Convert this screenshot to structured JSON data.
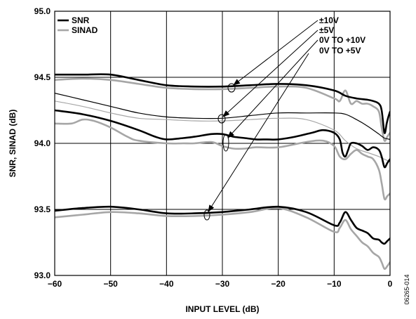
{
  "figure_id": "06265-014",
  "chart_data": {
    "type": "line",
    "title": "",
    "xlabel": "INPUT LEVEL (dB)",
    "ylabel": "SNR, SINAD (dB)",
    "xlim": [
      -60,
      0
    ],
    "ylim": [
      93.0,
      95.0
    ],
    "x_ticks": [
      -60,
      -50,
      -40,
      -30,
      -20,
      -10,
      0
    ],
    "x_tick_labels": [
      "−60",
      "−50",
      "−40",
      "−30",
      "−20",
      "−10",
      "0"
    ],
    "y_ticks": [
      93.0,
      93.5,
      94.0,
      94.5,
      95.0
    ],
    "y_tick_labels": [
      "93.0",
      "93.5",
      "94.0",
      "94.5",
      "95.0"
    ],
    "grid": true,
    "legend_position": "top-left",
    "legend": [
      {
        "label": "SNR",
        "color": "#000000"
      },
      {
        "label": "SINAD",
        "color": "#a6a6a6"
      }
    ],
    "annotations": [
      "±10V",
      "±5V",
      "0V TO +10V",
      "0V TO +5V"
    ],
    "series": [
      {
        "metric": "SNR",
        "range": "±10V",
        "color": "#000000",
        "width": 2.6,
        "x": [
          -60,
          -55,
          -50,
          -45,
          -40,
          -35,
          -30,
          -25,
          -20,
          -15,
          -10,
          -8,
          -6,
          -4,
          -3,
          -2,
          -1.5,
          -1,
          -0.6,
          -0.3,
          0
        ],
        "y": [
          94.52,
          94.52,
          94.52,
          94.48,
          94.44,
          94.43,
          94.43,
          94.44,
          94.45,
          94.44,
          94.4,
          94.36,
          94.34,
          94.33,
          94.32,
          94.3,
          94.25,
          94.08,
          94.15,
          94.2,
          94.24
        ]
      },
      {
        "metric": "SINAD",
        "range": "±10V",
        "color": "#a6a6a6",
        "width": 2.6,
        "x": [
          -60,
          -55,
          -50,
          -45,
          -40,
          -35,
          -30,
          -25,
          -20,
          -15,
          -10,
          -9,
          -8,
          -7,
          -6,
          -5,
          -4,
          -3,
          -2,
          -1.5,
          -1,
          -0.5,
          0
        ],
        "y": [
          94.48,
          94.49,
          94.48,
          94.45,
          94.42,
          94.41,
          94.41,
          94.42,
          94.43,
          94.42,
          94.34,
          94.32,
          94.4,
          94.3,
          94.32,
          94.3,
          94.3,
          94.28,
          94.24,
          94.12,
          94.02,
          94.05,
          94.08
        ]
      },
      {
        "metric": "SNR",
        "range": "±5V",
        "color": "#000000",
        "width": 1.2,
        "x": [
          -60,
          -55,
          -50,
          -45,
          -40,
          -35,
          -30,
          -25,
          -20,
          -15,
          -10,
          -8,
          -6,
          -4,
          -2,
          -1,
          0
        ],
        "y": [
          94.38,
          94.33,
          94.28,
          94.23,
          94.2,
          94.19,
          94.19,
          94.21,
          94.23,
          94.23,
          94.23,
          94.22,
          94.18,
          94.13,
          94.07,
          94.04,
          94.03
        ]
      },
      {
        "metric": "SINAD",
        "range": "±5V",
        "color": "#a6a6a6",
        "width": 1.2,
        "x": [
          -60,
          -55,
          -50,
          -45,
          -40,
          -35,
          -30,
          -25,
          -20,
          -15,
          -10,
          -8,
          -6,
          -4,
          -2,
          -1,
          0
        ],
        "y": [
          94.32,
          94.28,
          94.23,
          94.19,
          94.18,
          94.17,
          94.17,
          94.18,
          94.19,
          94.18,
          94.1,
          94.02,
          93.96,
          93.93,
          93.9,
          93.88,
          93.86
        ]
      },
      {
        "metric": "SNR",
        "range": "0V TO +10V",
        "color": "#000000",
        "width": 2.6,
        "x": [
          -60,
          -55,
          -50,
          -45,
          -42,
          -40,
          -37,
          -35,
          -32,
          -30,
          -28,
          -26,
          -24,
          -22,
          -20,
          -17,
          -14,
          -12,
          -10,
          -9,
          -8.5,
          -8,
          -7.5,
          -7,
          -6,
          -5,
          -4,
          -3,
          -2,
          -1.5,
          -1,
          -0.5,
          0
        ],
        "y": [
          94.25,
          94.22,
          94.17,
          94.1,
          94.05,
          94.03,
          94.04,
          94.05,
          94.07,
          94.07,
          94.05,
          94.04,
          94.03,
          94.03,
          94.03,
          94.05,
          94.08,
          94.1,
          94.08,
          94.03,
          93.93,
          93.9,
          93.95,
          94.0,
          94.0,
          93.98,
          93.95,
          93.97,
          93.95,
          93.9,
          93.82,
          93.85,
          93.88
        ]
      },
      {
        "metric": "SINAD",
        "range": "0V TO +10V",
        "color": "#a6a6a6",
        "width": 2.6,
        "x": [
          -60,
          -57,
          -55,
          -53,
          -50,
          -47,
          -45,
          -40,
          -37,
          -35,
          -32,
          -30,
          -28,
          -26,
          -24,
          -20,
          -15,
          -12,
          -10,
          -9,
          -8,
          -7,
          -6,
          -5,
          -4,
          -3,
          -2,
          -1.5,
          -1,
          -0.5,
          0
        ],
        "y": [
          94.15,
          94.15,
          94.18,
          94.17,
          94.12,
          94.05,
          94.02,
          94.0,
          94.0,
          94.0,
          94.01,
          93.98,
          93.96,
          93.96,
          93.97,
          93.97,
          94.01,
          94.02,
          93.98,
          93.9,
          93.88,
          93.92,
          93.95,
          93.92,
          93.9,
          93.88,
          93.8,
          93.7,
          93.58,
          93.6,
          93.62
        ]
      },
      {
        "metric": "SNR",
        "range": "0V TO +5V",
        "color": "#000000",
        "width": 2.6,
        "x": [
          -60,
          -55,
          -50,
          -45,
          -40,
          -35,
          -30,
          -25,
          -20,
          -15,
          -10,
          -9,
          -8,
          -7,
          -6,
          -5,
          -4,
          -3,
          -2,
          -1.5,
          -1,
          -0.5,
          0
        ],
        "y": [
          93.49,
          93.51,
          93.52,
          93.5,
          93.47,
          93.47,
          93.48,
          93.5,
          93.52,
          93.48,
          93.38,
          93.4,
          93.48,
          93.42,
          93.36,
          93.34,
          93.32,
          93.28,
          93.27,
          93.25,
          93.24,
          93.26,
          93.28
        ]
      },
      {
        "metric": "SINAD",
        "range": "0V TO +5V",
        "color": "#a6a6a6",
        "width": 2.6,
        "x": [
          -60,
          -55,
          -50,
          -45,
          -40,
          -35,
          -30,
          -25,
          -20,
          -15,
          -10,
          -9,
          -8,
          -7,
          -6,
          -5,
          -4,
          -3,
          -2,
          -1.5,
          -1,
          -0.5,
          0
        ],
        "y": [
          93.44,
          93.46,
          93.48,
          93.47,
          93.45,
          93.45,
          93.46,
          93.48,
          93.51,
          93.44,
          93.33,
          93.36,
          93.42,
          93.35,
          93.3,
          93.25,
          93.22,
          93.17,
          93.14,
          93.1,
          93.05,
          93.07,
          93.1
        ]
      }
    ]
  }
}
